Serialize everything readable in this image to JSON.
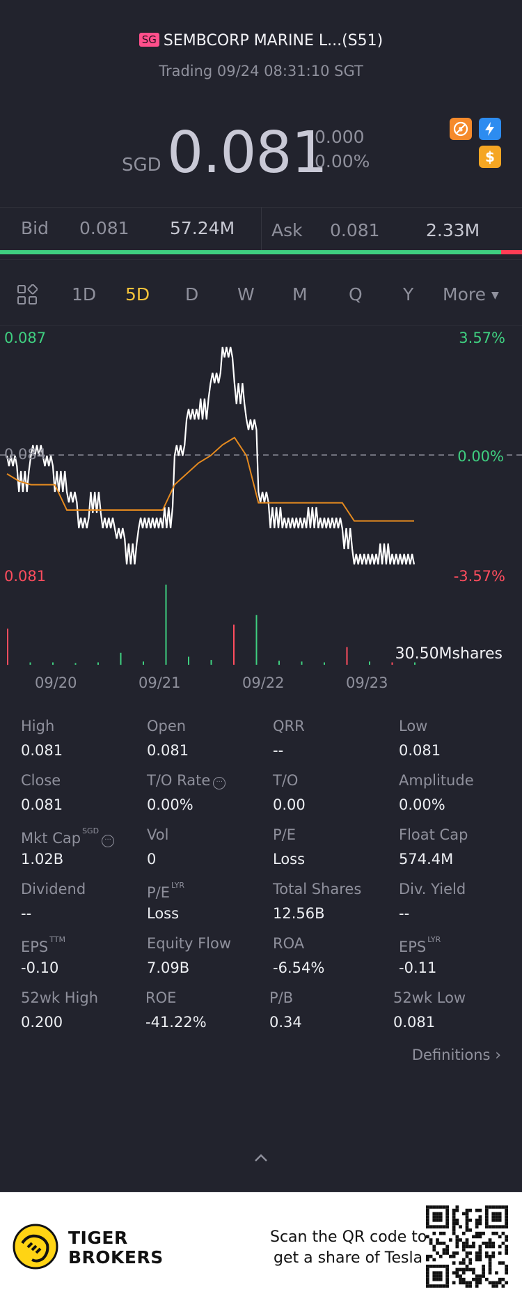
{
  "header": {
    "flag": "SG",
    "title": "SEMBCORP MARINE L...(S51)",
    "status": "Trading 09/24 08:31:10 SGT"
  },
  "quote": {
    "currency": "SGD",
    "price": "0.081",
    "change": "0.000",
    "change_pct": "0.00%",
    "badges": [
      "no-short-icon",
      "flash-icon",
      "dollar-icon"
    ]
  },
  "bidask": {
    "bid_label": "Bid",
    "bid_price": "0.081",
    "bid_size": "57.24M",
    "ask_label": "Ask",
    "ask_price": "0.081",
    "ask_size": "2.33M",
    "bid_share": 0.96
  },
  "tabs": {
    "items": [
      "1D",
      "5D",
      "D",
      "W",
      "M",
      "Q",
      "Y"
    ],
    "active": "5D",
    "more": "More"
  },
  "chart_data": {
    "type": "line",
    "title": "",
    "y_labels_left": {
      "top": "0.087",
      "mid": "0.084",
      "bottom": "0.081"
    },
    "y_labels_right": {
      "top": "3.57%",
      "mid": "0.00%",
      "bottom": "-3.57%"
    },
    "ylim": [
      0.081,
      0.087
    ],
    "x_ticks": [
      "09/20",
      "09/21",
      "09/22",
      "09/23"
    ],
    "volume_label": "30.50Mshares",
    "series": [
      {
        "values": [
          0.084,
          0.083,
          0.084,
          0.084,
          0.083,
          0.083,
          0.082,
          0.083,
          0.082,
          0.082,
          0.081,
          0.082,
          0.082,
          0.082,
          0.084,
          0.085,
          0.085,
          0.086,
          0.087,
          0.086,
          0.085,
          0.083,
          0.082,
          0.082,
          0.082,
          0.082,
          0.082,
          0.082,
          0.082,
          0.081,
          0.081,
          0.081,
          0.081,
          0.081,
          0.081
        ]
      },
      {
        "values": [
          0.0835,
          0.0833,
          0.0832,
          0.0832,
          0.0832,
          0.0825,
          0.0825,
          0.0825,
          0.0825,
          0.0825,
          0.0825,
          0.0825,
          0.0825,
          0.0825,
          0.0832,
          0.0835,
          0.0838,
          0.084,
          0.0843,
          0.0845,
          0.084,
          0.0827,
          0.0827,
          0.0827,
          0.0827,
          0.0827,
          0.0827,
          0.0827,
          0.0827,
          0.0822,
          0.0822,
          0.0822,
          0.0822,
          0.0822,
          0.0822
        ]
      }
    ],
    "volume": [
      {
        "v": 0.45,
        "c": "red"
      },
      {
        "v": 0.03,
        "c": "green"
      },
      {
        "v": 0.03,
        "c": "green"
      },
      {
        "v": 0.02,
        "c": "green"
      },
      {
        "v": 0.03,
        "c": "green"
      },
      {
        "v": 0.15,
        "c": "green"
      },
      {
        "v": 0.04,
        "c": "green"
      },
      {
        "v": 1.0,
        "c": "green"
      },
      {
        "v": 0.1,
        "c": "green"
      },
      {
        "v": 0.06,
        "c": "green"
      },
      {
        "v": 0.5,
        "c": "red"
      },
      {
        "v": 0.62,
        "c": "green"
      },
      {
        "v": 0.05,
        "c": "green"
      },
      {
        "v": 0.04,
        "c": "green"
      },
      {
        "v": 0.03,
        "c": "green"
      },
      {
        "v": 0.22,
        "c": "red"
      },
      {
        "v": 0.04,
        "c": "green"
      },
      {
        "v": 0.03,
        "c": "red"
      },
      {
        "v": 0.03,
        "c": "green"
      }
    ]
  },
  "stats": [
    [
      {
        "label": "High",
        "value": "0.081"
      },
      {
        "label": "Open",
        "value": "0.081"
      },
      {
        "label": "QRR",
        "value": "--"
      },
      {
        "label": "Low",
        "value": "0.081"
      }
    ],
    [
      {
        "label": "Close",
        "value": "0.081"
      },
      {
        "label": "T/O Rate",
        "value": "0.00%",
        "info": true
      },
      {
        "label": "T/O",
        "value": "0.00"
      },
      {
        "label": "Amplitude",
        "value": "0.00%"
      }
    ],
    [
      {
        "label": "Mkt Cap",
        "value": "1.02B",
        "sup": "SGD",
        "info": true
      },
      {
        "label": "Vol",
        "value": "0"
      },
      {
        "label": "P/E",
        "value": "Loss"
      },
      {
        "label": "Float Cap",
        "value": "574.4M"
      }
    ],
    [
      {
        "label": "Dividend",
        "value": "--"
      },
      {
        "label": "P/E",
        "value": "Loss",
        "sup": "LYR"
      },
      {
        "label": "Total Shares",
        "value": "12.56B"
      },
      {
        "label": "Div. Yield",
        "value": "--"
      }
    ],
    [
      {
        "label": "EPS",
        "value": "-0.10",
        "sup": "TTM"
      },
      {
        "label": "Equity Flow",
        "value": "7.09B"
      },
      {
        "label": "ROA",
        "value": "-6.54%"
      },
      {
        "label": "EPS",
        "value": "-0.11",
        "sup": "LYR"
      }
    ],
    [
      {
        "label": "52wk High",
        "value": "0.200"
      },
      {
        "label": "ROE",
        "value": "-41.22%"
      },
      {
        "label": "P/B",
        "value": "0.34"
      },
      {
        "label": "52wk Low",
        "value": "0.081"
      }
    ]
  ],
  "definitions": "Definitions",
  "footer": {
    "brand_line1": "TIGER",
    "brand_line2": "BROKERS",
    "promo_line1": "Scan the QR code to",
    "promo_line2": "get a share of Tesla"
  },
  "colors": {
    "up": "#3fcf80",
    "down": "#ff4d5e",
    "accent": "#f5c33b",
    "ma": "#e58a1f",
    "bg": "#22232d"
  }
}
